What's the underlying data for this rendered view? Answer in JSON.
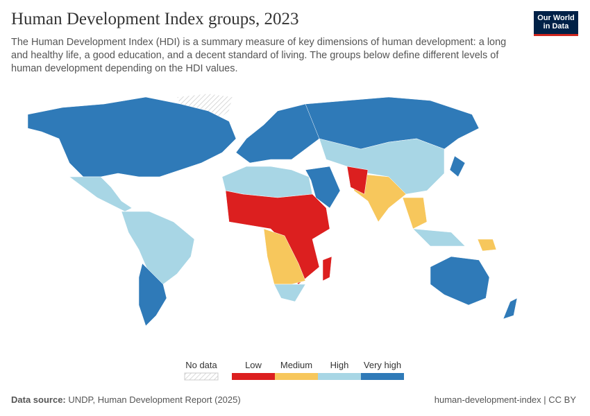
{
  "header": {
    "title": "Human Development Index groups, 2023",
    "subtitle": "The Human Development Index (HDI) is a summary measure of key dimensions of human development: a long and healthy life, a good education, and a decent standard of living. The groups below define different levels of human development depending on the HDI values.",
    "logo": [
      "Our World",
      "in Data"
    ]
  },
  "legend": {
    "no_data": "No data",
    "items": [
      {
        "label": "Low",
        "color": "#dc1f1f"
      },
      {
        "label": "Medium",
        "color": "#f7c75c"
      },
      {
        "label": "High",
        "color": "#a8d6e5"
      },
      {
        "label": "Very high",
        "color": "#2f7ab8"
      }
    ]
  },
  "footer": {
    "source_label": "Data source:",
    "source": "UNDP, Human Development Report (2025)",
    "url": "human-development-index | CC BY"
  }
}
